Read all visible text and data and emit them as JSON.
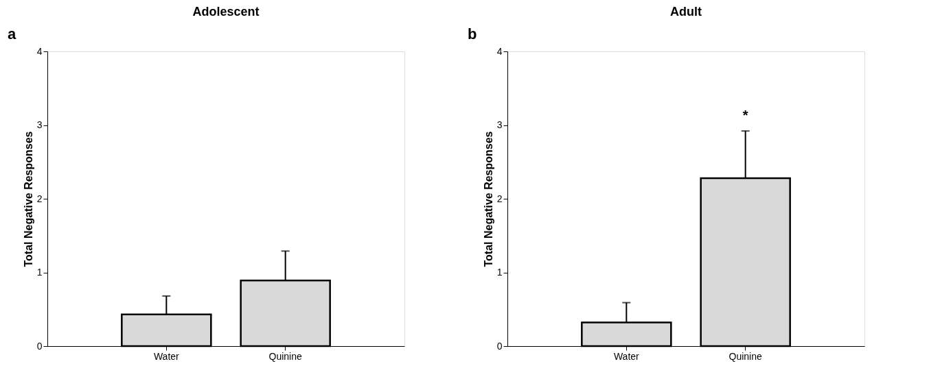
{
  "chart_data": [
    {
      "type": "bar",
      "title": "Adolescent",
      "ylabel": "Total Negative Responses",
      "categories": [
        "Water",
        "Quinine"
      ],
      "values": [
        0.43,
        0.89
      ],
      "errors": [
        [
          0.43,
          0.68
        ],
        [
          0.89,
          1.29
        ]
      ],
      "color": "#d9d9d9",
      "ylim": [
        0,
        4
      ],
      "yticks": [
        0,
        1,
        2,
        3,
        4
      ],
      "grid": false,
      "annotations": [
        "a"
      ]
    },
    {
      "type": "bar",
      "title": "Adult",
      "ylabel": "Total Negative Responses",
      "categories": [
        "Water",
        "Quinine"
      ],
      "values": [
        0.32,
        2.28
      ],
      "errors": [
        [
          0.32,
          0.59
        ],
        [
          2.28,
          2.92
        ]
      ],
      "color": "#d9d9d9",
      "ylim": [
        0,
        4
      ],
      "yticks": [
        0,
        1,
        2,
        3,
        4
      ],
      "grid": false,
      "annotations": [
        "b",
        {
          "text": "*",
          "x": "Quinine",
          "y": 2.92
        }
      ]
    }
  ]
}
